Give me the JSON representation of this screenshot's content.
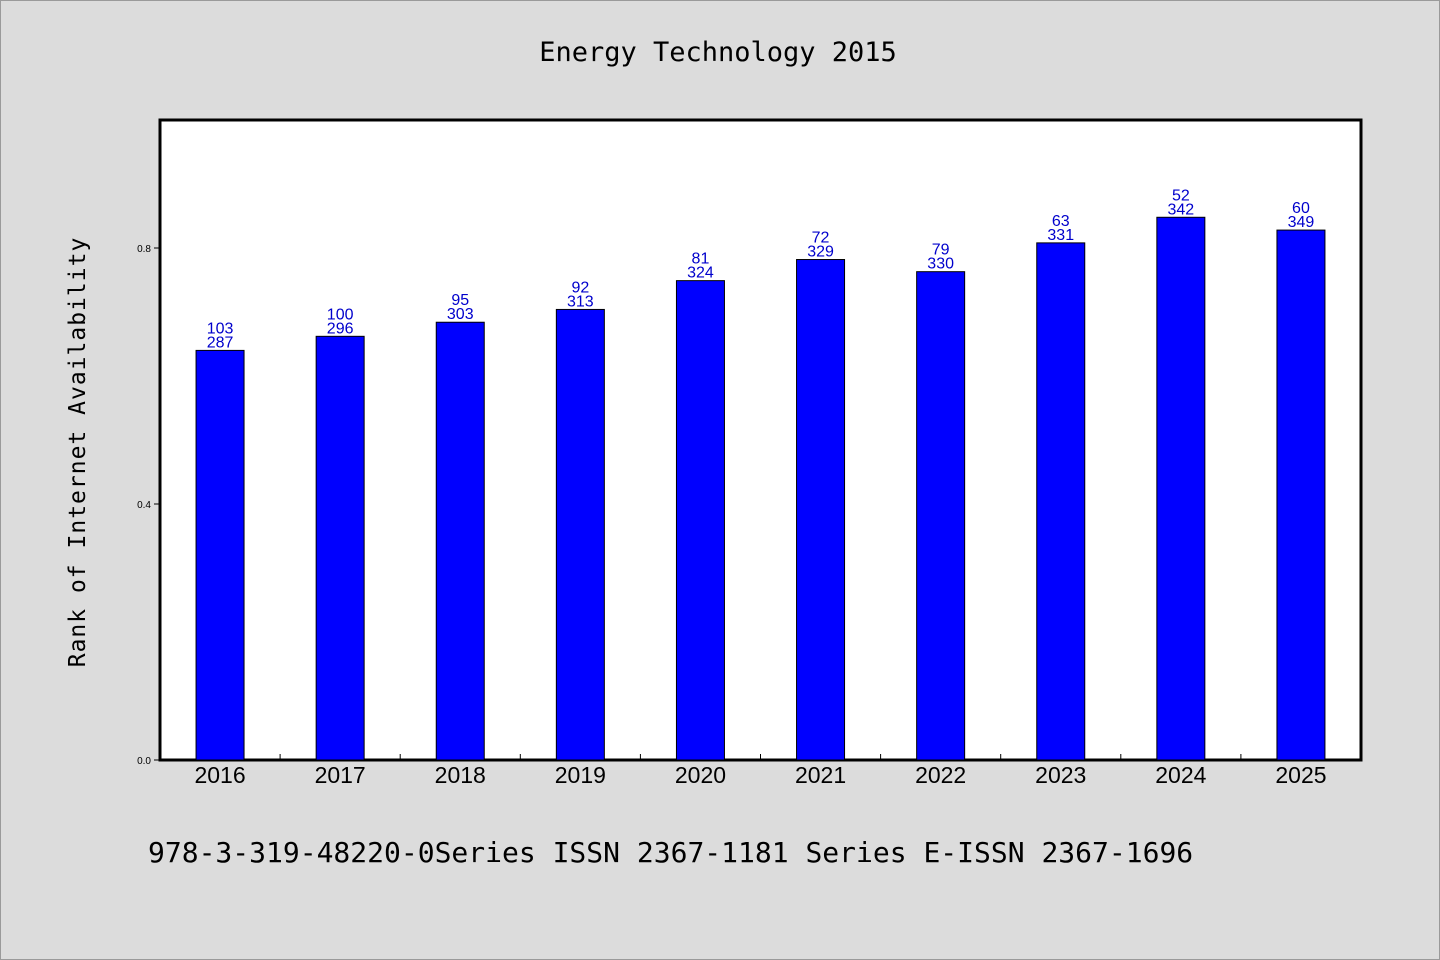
{
  "chart_data": {
    "type": "bar",
    "title": "Energy Technology 2015",
    "xlabel": "",
    "ylabel": "Rank of Internet Availability",
    "categories": [
      "2016",
      "2017",
      "2018",
      "2019",
      "2020",
      "2021",
      "2022",
      "2023",
      "2024",
      "2025"
    ],
    "values": [
      0.64,
      0.662,
      0.684,
      0.704,
      0.749,
      0.782,
      0.763,
      0.808,
      0.848,
      0.828
    ],
    "labels_top": [
      "103",
      "100",
      "95",
      "92",
      "81",
      "72",
      "79",
      "63",
      "52",
      "60"
    ],
    "labels_bottom": [
      "287",
      "296",
      "303",
      "313",
      "324",
      "329",
      "330",
      "331",
      "342",
      "349"
    ],
    "yticks": [
      "0.0",
      "0.4",
      "0.8"
    ],
    "ytick_values": [
      0.0,
      0.4,
      0.8
    ],
    "ylim": [
      0,
      1.0
    ],
    "bar_color": "#0000ff",
    "label_color": "#0000cc",
    "grid": false,
    "legend": "none"
  },
  "footer": "978-3-319-48220-0Series ISSN 2367-1181 Series E-ISSN 2367-1696"
}
